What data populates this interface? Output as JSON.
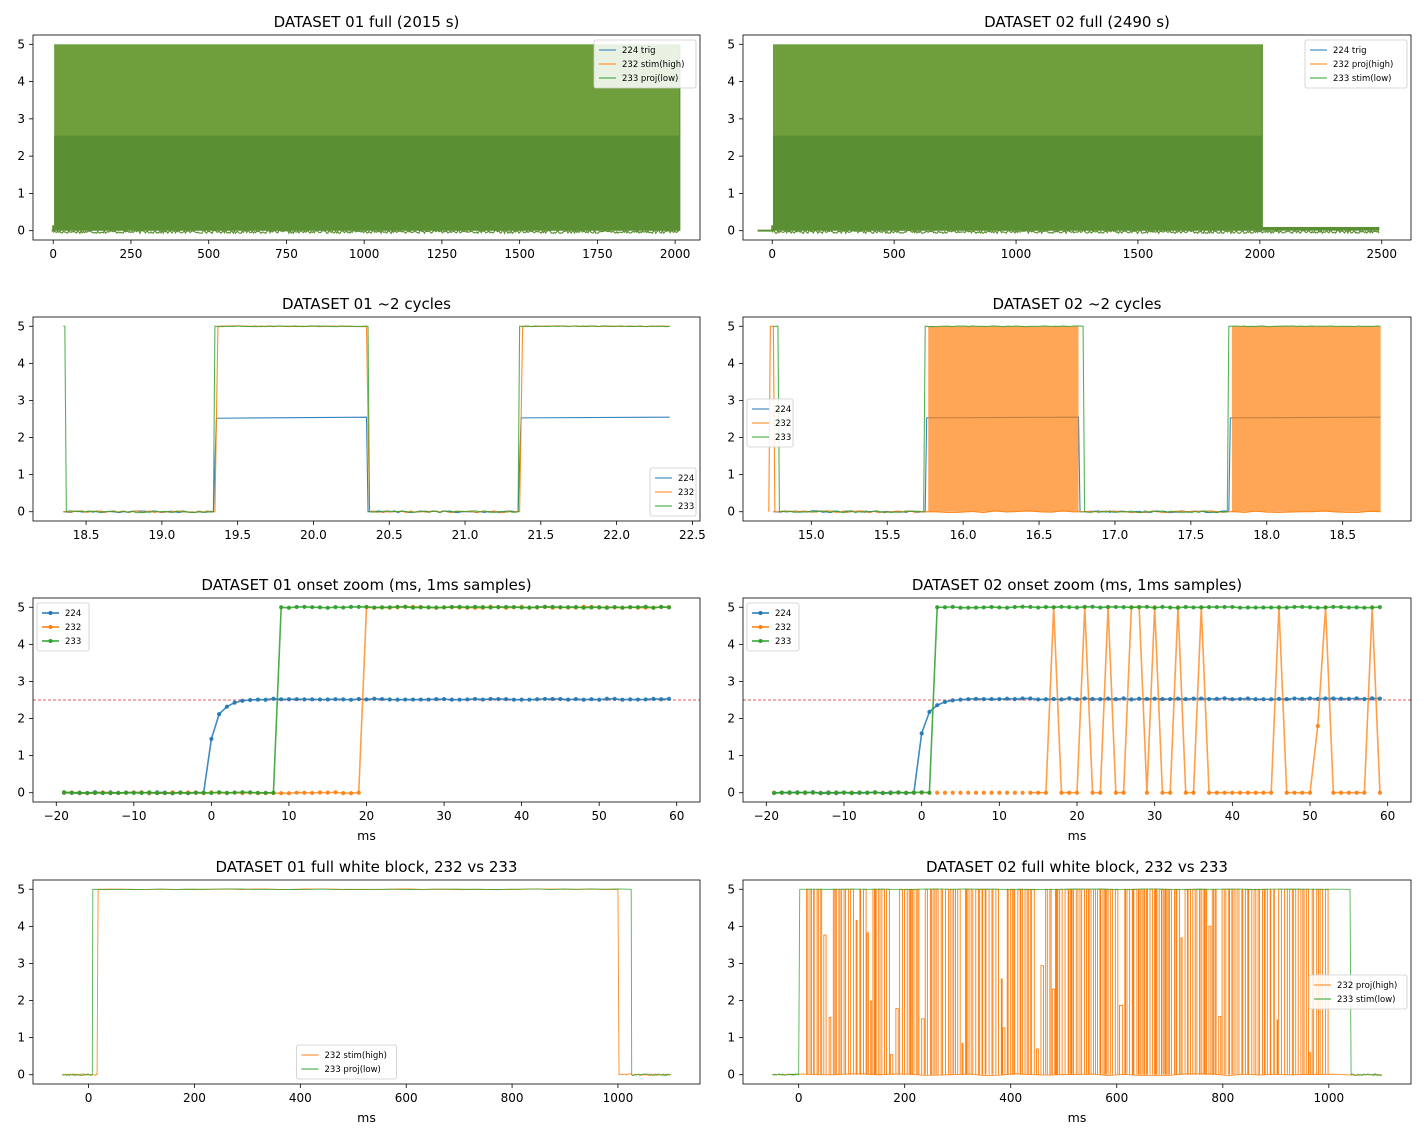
{
  "figure": {
    "background": "#ffffff"
  },
  "colors": {
    "c224": "#1f77b4",
    "c232": "#ff7f0e",
    "c233": "#2ca02c",
    "threshold": "#d62728",
    "full_fill": "#6f9e3c",
    "full_inner": "#5b8f33"
  },
  "chart_data": [
    {
      "id": "ds01_full",
      "type": "line",
      "title": "DATASET 01  full (2015 s)",
      "xlabel": "",
      "xlim": [
        -65,
        2080
      ],
      "ylim": [
        -0.25,
        5.25
      ],
      "xticks": [
        0,
        250,
        500,
        750,
        1000,
        1250,
        1500,
        1750,
        2000
      ],
      "yticks": [
        0,
        1,
        2,
        3,
        4,
        5
      ],
      "legend_position": "top-right",
      "series": [
        {
          "name": "224 trig",
          "color": "#1f77b4",
          "segments": [
            [
              0,
              0
            ],
            [
              3,
              0
            ],
            [
              3,
              2.55
            ],
            [
              2015,
              2.55
            ],
            [
              2015,
              0
            ]
          ]
        },
        {
          "name": "232 stim(high)",
          "color": "#ff7f0e",
          "segments": [
            [
              0,
              0
            ],
            [
              3,
              0
            ],
            [
              3,
              5
            ],
            [
              2015,
              5
            ],
            [
              2015,
              0
            ]
          ]
        },
        {
          "name": "233 proj(low)",
          "color": "#2ca02c",
          "segments": [
            [
              0,
              0
            ],
            [
              3,
              0
            ],
            [
              3,
              5
            ],
            [
              2015,
              5
            ],
            [
              2015,
              0
            ]
          ]
        }
      ],
      "filled_bands": [
        {
          "x": [
            3,
            2015
          ],
          "y": [
            0,
            5
          ]
        },
        {
          "x": [
            3,
            2015
          ],
          "y": [
            0,
            2.55
          ]
        }
      ]
    },
    {
      "id": "ds02_full",
      "type": "line",
      "title": "DATASET 02  full (2490 s)",
      "xlabel": "",
      "xlim": [
        -120,
        2620
      ],
      "ylim": [
        -0.25,
        5.25
      ],
      "xticks": [
        0,
        500,
        1000,
        1500,
        2000,
        2500
      ],
      "yticks": [
        0,
        1,
        2,
        3,
        4,
        5
      ],
      "legend_position": "top-right",
      "series": [
        {
          "name": "224 trig",
          "color": "#1f77b4",
          "segments": [
            [
              0,
              0
            ],
            [
              3,
              0
            ],
            [
              3,
              2.55
            ],
            [
              2010,
              2.55
            ],
            [
              2010,
              0
            ]
          ]
        },
        {
          "name": "232 proj(high)",
          "color": "#ff7f0e",
          "segments": [
            [
              0,
              0
            ],
            [
              3,
              0
            ],
            [
              3,
              5
            ],
            [
              2010,
              5
            ],
            [
              2010,
              0.1
            ],
            [
              2490,
              0.1
            ]
          ]
        },
        {
          "name": "233 stim(low)",
          "color": "#2ca02c",
          "segments": [
            [
              0,
              0
            ],
            [
              3,
              0
            ],
            [
              3,
              5
            ],
            [
              2010,
              5
            ],
            [
              2010,
              0
            ]
          ]
        }
      ],
      "filled_bands": [
        {
          "x": [
            3,
            2010
          ],
          "y": [
            0,
            5
          ]
        },
        {
          "x": [
            3,
            2010
          ],
          "y": [
            0,
            2.55
          ]
        },
        {
          "x": [
            2010,
            2490
          ],
          "y": [
            0,
            0.1
          ]
        }
      ]
    },
    {
      "id": "ds01_cycles",
      "type": "line",
      "title": "DATASET 01  ~2 cycles",
      "xlabel": "",
      "xlim": [
        18.15,
        22.55
      ],
      "ylim": [
        -0.25,
        5.25
      ],
      "xticks": [
        18.5,
        19.0,
        19.5,
        20.0,
        20.5,
        21.0,
        21.5,
        22.0,
        22.5
      ],
      "yticks": [
        0,
        1,
        2,
        3,
        4,
        5
      ],
      "legend_position": "bottom-right",
      "series": [
        {
          "name": "224",
          "color": "#1f77b4",
          "segments": [
            [
              18.35,
              0
            ],
            [
              19.34,
              0
            ],
            [
              19.36,
              2.52
            ],
            [
              20.35,
              2.55
            ],
            [
              20.36,
              0
            ],
            [
              21.35,
              0
            ],
            [
              21.37,
              2.53
            ],
            [
              22.35,
              2.55
            ]
          ]
        },
        {
          "name": "232",
          "color": "#ff7f0e",
          "segments": [
            [
              18.35,
              0
            ],
            [
              19.35,
              0
            ],
            [
              19.37,
              5
            ],
            [
              20.35,
              5
            ],
            [
              20.37,
              0
            ],
            [
              21.36,
              0
            ],
            [
              21.38,
              5
            ],
            [
              22.35,
              5
            ]
          ]
        },
        {
          "name": "233",
          "color": "#2ca02c",
          "segments": [
            [
              18.35,
              5
            ],
            [
              18.36,
              5
            ],
            [
              18.37,
              0
            ],
            [
              19.34,
              0
            ],
            [
              19.35,
              5
            ],
            [
              20.36,
              5
            ],
            [
              20.37,
              0
            ],
            [
              21.35,
              0
            ],
            [
              21.36,
              5
            ],
            [
              22.35,
              5
            ]
          ]
        }
      ]
    },
    {
      "id": "ds02_cycles",
      "type": "line",
      "title": "DATASET 02  ~2 cycles",
      "xlabel": "",
      "xlim": [
        14.55,
        18.95
      ],
      "ylim": [
        -0.25,
        5.25
      ],
      "xticks": [
        15.0,
        15.5,
        16.0,
        16.5,
        17.0,
        17.5,
        18.0,
        18.5
      ],
      "yticks": [
        0,
        1,
        2,
        3,
        4,
        5
      ],
      "legend_position": "center-left",
      "series": [
        {
          "name": "224",
          "color": "#1f77b4",
          "segments": [
            [
              14.75,
              0
            ],
            [
              15.75,
              0
            ],
            [
              15.76,
              2.53
            ],
            [
              16.76,
              2.55
            ],
            [
              16.77,
              0
            ],
            [
              17.75,
              0
            ],
            [
              17.76,
              2.53
            ],
            [
              18.75,
              2.55
            ]
          ]
        },
        {
          "name": "232",
          "color": "#ff7f0e",
          "segments": [
            [
              14.72,
              0
            ],
            [
              14.73,
              5
            ],
            [
              14.75,
              5
            ],
            [
              14.76,
              0
            ],
            [
              15.76,
              0
            ],
            [
              18.75,
              0
            ]
          ],
          "dense_bands": [
            [
              15.77,
              16.76
            ],
            [
              17.77,
              18.75
            ]
          ]
        },
        {
          "name": "233",
          "color": "#2ca02c",
          "segments": [
            [
              14.75,
              5
            ],
            [
              14.78,
              5
            ],
            [
              14.79,
              0
            ],
            [
              15.74,
              0
            ],
            [
              15.75,
              5
            ],
            [
              16.79,
              5
            ],
            [
              16.8,
              0
            ],
            [
              17.74,
              0
            ],
            [
              17.75,
              5
            ],
            [
              18.75,
              5
            ]
          ]
        }
      ]
    },
    {
      "id": "ds01_onset",
      "type": "line",
      "title": "DATASET 01  onset zoom (ms, 1ms samples)",
      "xlabel": "ms",
      "xlim": [
        -23,
        63
      ],
      "ylim": [
        -0.25,
        5.25
      ],
      "xticks": [
        -20,
        -10,
        0,
        10,
        20,
        30,
        40,
        50,
        60
      ],
      "yticks": [
        0,
        1,
        2,
        3,
        4,
        5
      ],
      "legend_position": "top-left",
      "markers": true,
      "threshold": 2.5,
      "x_range": [
        -19,
        59
      ],
      "series": [
        {
          "name": "224",
          "color": "#1f77b4",
          "onset": -1,
          "knots": [
            [
              -1,
              0
            ],
            [
              0,
              1.45
            ],
            [
              1,
              2.12
            ],
            [
              2,
              2.32
            ],
            [
              3,
              2.43
            ],
            [
              4,
              2.48
            ],
            [
              5,
              2.5
            ],
            [
              6,
              2.51
            ]
          ],
          "high": 2.52
        },
        {
          "name": "232",
          "color": "#ff7f0e",
          "onset": 19,
          "knots": [
            [
              19,
              0
            ],
            [
              20,
              5
            ]
          ],
          "high": 5
        },
        {
          "name": "233",
          "color": "#2ca02c",
          "onset": 8,
          "knots": [
            [
              8,
              0
            ],
            [
              9,
              5
            ]
          ],
          "high": 5
        }
      ]
    },
    {
      "id": "ds02_onset",
      "type": "line",
      "title": "DATASET 02  onset zoom (ms, 1ms samples)",
      "xlabel": "ms",
      "xlim": [
        -23,
        63
      ],
      "ylim": [
        -0.25,
        5.25
      ],
      "xticks": [
        -20,
        -10,
        0,
        10,
        20,
        30,
        40,
        50,
        60
      ],
      "yticks": [
        0,
        1,
        2,
        3,
        4,
        5
      ],
      "legend_position": "top-left",
      "markers": true,
      "threshold": 2.5,
      "x_range": [
        -19,
        59
      ],
      "series": [
        {
          "name": "224",
          "color": "#1f77b4",
          "onset": -1,
          "knots": [
            [
              -1,
              0
            ],
            [
              0,
              1.6
            ],
            [
              1,
              2.18
            ],
            [
              2,
              2.36
            ],
            [
              3,
              2.45
            ],
            [
              4,
              2.49
            ],
            [
              5,
              2.51
            ]
          ],
          "high": 2.53
        },
        {
          "name": "232",
          "color": "#ff7f0e",
          "onset": 99,
          "high_samples": [
            17,
            21,
            24,
            27,
            28,
            30,
            33,
            36,
            46,
            52,
            58
          ],
          "mid_samples": [
            [
              51,
              1.8
            ]
          ]
        },
        {
          "name": "233",
          "color": "#2ca02c",
          "onset": 1,
          "knots": [
            [
              1,
              0
            ],
            [
              2,
              5
            ]
          ],
          "high": 5
        }
      ]
    },
    {
      "id": "ds01_block",
      "type": "line",
      "title": "DATASET 01  full white block, 232 vs 233",
      "xlabel": "ms",
      "xlim": [
        -105,
        1155
      ],
      "ylim": [
        -0.25,
        5.25
      ],
      "xticks": [
        0,
        200,
        400,
        600,
        800,
        1000
      ],
      "yticks": [
        0,
        1,
        2,
        3,
        4,
        5
      ],
      "legend_position": "bottom-center",
      "series": [
        {
          "name": "232 stim(high)",
          "color": "#ff7f0e",
          "segments": [
            [
              -50,
              0
            ],
            [
              16,
              0
            ],
            [
              18,
              5
            ],
            [
              1000,
              5
            ],
            [
              1002,
              0
            ],
            [
              1100,
              0
            ]
          ]
        },
        {
          "name": "233 proj(low)",
          "color": "#2ca02c",
          "segments": [
            [
              -50,
              0
            ],
            [
              7,
              0
            ],
            [
              8,
              5
            ],
            [
              1025,
              5
            ],
            [
              1026,
              0
            ],
            [
              1100,
              0
            ]
          ]
        }
      ]
    },
    {
      "id": "ds02_block",
      "type": "line",
      "title": "DATASET 02  full white block, 232 vs 233",
      "xlabel": "ms",
      "xlim": [
        -105,
        1155
      ],
      "ylim": [
        -0.25,
        5.25
      ],
      "xticks": [
        0,
        200,
        400,
        600,
        800,
        1000
      ],
      "yticks": [
        0,
        1,
        2,
        3,
        4,
        5
      ],
      "legend_position": "center-right",
      "series": [
        {
          "name": "232 proj(high)",
          "color": "#ff7f0e",
          "segments": [
            [
              -50,
              0
            ],
            [
              1100,
              0
            ]
          ],
          "flicker_range": [
            15,
            1000
          ]
        },
        {
          "name": "233 stim(low)",
          "color": "#2ca02c",
          "segments": [
            [
              -50,
              0
            ],
            [
              0,
              0
            ],
            [
              2,
              5
            ],
            [
              1040,
              5
            ],
            [
              1042,
              0
            ],
            [
              1100,
              0
            ]
          ]
        }
      ]
    }
  ]
}
